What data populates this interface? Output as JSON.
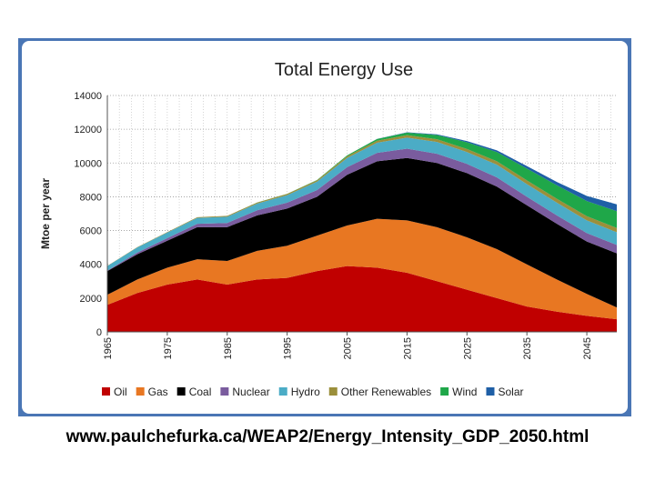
{
  "chart_data": {
    "type": "area",
    "stacked": true,
    "title": "Total Energy Use",
    "xlabel": "",
    "ylabel": "Mtoe per year",
    "ylim": [
      0,
      14000
    ],
    "yticks": [
      0,
      2000,
      4000,
      6000,
      8000,
      10000,
      12000,
      14000
    ],
    "xlim": [
      1965,
      2050
    ],
    "xtick_labels": [
      "1965",
      "1975",
      "1985",
      "1995",
      "2005",
      "2015",
      "2025",
      "2035",
      "2045"
    ],
    "grid": "dotted",
    "legend_position": "bottom",
    "x": [
      1965,
      1970,
      1975,
      1980,
      1985,
      1990,
      1995,
      2000,
      2005,
      2010,
      2015,
      2020,
      2025,
      2030,
      2035,
      2040,
      2045,
      2050
    ],
    "series": [
      {
        "name": "Oil",
        "color": "#c00000",
        "values": [
          1600,
          2300,
          2800,
          3100,
          2800,
          3100,
          3200,
          3600,
          3900,
          3800,
          3500,
          3000,
          2500,
          2000,
          1500,
          1200,
          950,
          750
        ]
      },
      {
        "name": "Gas",
        "color": "#e87722",
        "values": [
          600,
          800,
          1000,
          1200,
          1400,
          1700,
          1900,
          2100,
          2400,
          2900,
          3100,
          3200,
          3100,
          2900,
          2500,
          1900,
          1300,
          700
        ]
      },
      {
        "name": "Coal",
        "color": "#000000",
        "values": [
          1400,
          1500,
          1600,
          1900,
          2000,
          2100,
          2200,
          2300,
          3000,
          3400,
          3700,
          3800,
          3800,
          3700,
          3500,
          3300,
          3100,
          3200
        ]
      },
      {
        "name": "Nuclear",
        "color": "#7a5c9e",
        "values": [
          30,
          100,
          150,
          200,
          250,
          300,
          350,
          400,
          450,
          500,
          550,
          550,
          550,
          550,
          500,
          500,
          500,
          500
        ]
      },
      {
        "name": "Hydro",
        "color": "#4bacc6",
        "values": [
          270,
          300,
          330,
          350,
          370,
          400,
          450,
          500,
          550,
          600,
          650,
          700,
          700,
          750,
          750,
          750,
          750,
          750
        ]
      },
      {
        "name": "Other Renewables",
        "color": "#9b8f3b",
        "values": [
          10,
          20,
          30,
          40,
          50,
          60,
          70,
          80,
          100,
          120,
          150,
          160,
          180,
          200,
          220,
          230,
          250,
          250
        ]
      },
      {
        "name": "Wind",
        "color": "#1fa749",
        "values": [
          0,
          0,
          0,
          0,
          0,
          5,
          10,
          20,
          50,
          100,
          150,
          250,
          400,
          550,
          700,
          800,
          900,
          1000
        ]
      },
      {
        "name": "Solar",
        "color": "#1f5fa6",
        "values": [
          0,
          0,
          0,
          0,
          0,
          0,
          0,
          0,
          5,
          10,
          20,
          40,
          70,
          100,
          150,
          200,
          300,
          400
        ]
      }
    ]
  },
  "source_url": "www.paulchefurka.ca/WEAP2/Energy_Intensity_GDP_2050.html"
}
